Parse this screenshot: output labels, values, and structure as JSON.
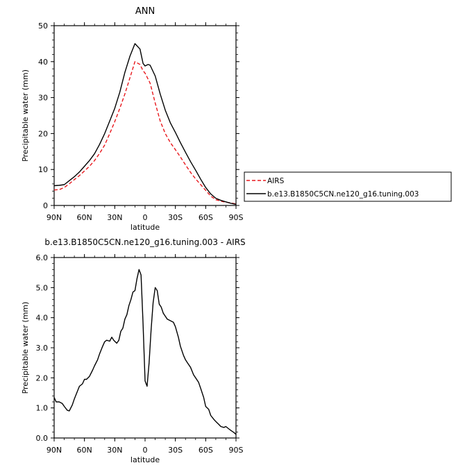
{
  "figure": {
    "title": "ANN",
    "subtitle": "b.e13.B1850C5CN.ne120_g16.tuning.003 - AIRS"
  },
  "chart_data": [
    {
      "type": "line",
      "title": "ANN",
      "xlabel": "latitude",
      "ylabel": "Precipitable water (mm)",
      "x_ticks": [
        "90N",
        "60N",
        "30N",
        "0",
        "30S",
        "60S",
        "90S"
      ],
      "x_tick_values": [
        90,
        60,
        30,
        0,
        -30,
        -60,
        -90
      ],
      "xlim": [
        90,
        -90
      ],
      "ylim": [
        0,
        50
      ],
      "y_ticks": [
        0,
        10,
        20,
        30,
        40,
        50
      ],
      "y_tick_labels": [
        "0",
        "10",
        "20",
        "30",
        "40",
        "50"
      ],
      "legend_position": "right",
      "series": [
        {
          "name": "AIRS",
          "color": "#e8171c",
          "dash": "dashed",
          "x": [
            90,
            85,
            80,
            75,
            70,
            65,
            60,
            55,
            50,
            45,
            40,
            35,
            30,
            25,
            20,
            15,
            10,
            5,
            2,
            0,
            -5,
            -10,
            -15,
            -20,
            -25,
            -30,
            -35,
            -40,
            -45,
            -50,
            -55,
            -60,
            -65,
            -70,
            -75,
            -80,
            -85,
            -90
          ],
          "y": [
            4.3,
            4.4,
            5.0,
            6.0,
            7.2,
            8.3,
            9.6,
            10.9,
            12.5,
            14.5,
            16.8,
            20.0,
            23.3,
            27.0,
            31.0,
            35.5,
            40.0,
            39.2,
            37.5,
            36.8,
            34.0,
            28.5,
            23.5,
            20.0,
            17.5,
            15.5,
            13.5,
            11.3,
            9.2,
            7.4,
            5.8,
            4.2,
            2.6,
            1.6,
            1.2,
            0.9,
            0.7,
            0.4
          ]
        },
        {
          "name": "b.e13.B1850C5CN.ne120_g16.tuning.003",
          "color": "#000000",
          "dash": "solid",
          "x": [
            90,
            85,
            80,
            75,
            70,
            65,
            60,
            55,
            50,
            45,
            40,
            35,
            30,
            25,
            20,
            15,
            10,
            5,
            2,
            0,
            -3,
            -5,
            -10,
            -15,
            -20,
            -25,
            -30,
            -35,
            -40,
            -45,
            -50,
            -55,
            -60,
            -65,
            -70,
            -75,
            -80,
            -85,
            -90
          ],
          "y": [
            5.5,
            5.6,
            5.8,
            6.9,
            8.0,
            9.3,
            10.9,
            12.5,
            14.4,
            17.0,
            20.0,
            23.5,
            27.0,
            31.5,
            37.0,
            41.5,
            45.0,
            43.5,
            39.5,
            38.8,
            39.2,
            39.0,
            36.0,
            31.0,
            26.5,
            23.0,
            20.3,
            17.5,
            14.8,
            12.2,
            9.8,
            7.3,
            5.0,
            3.2,
            2.0,
            1.4,
            1.0,
            0.6,
            0.3
          ]
        }
      ]
    },
    {
      "type": "line",
      "title": "b.e13.B1850C5CN.ne120_g16.tuning.003 - AIRS",
      "xlabel": "latitude",
      "ylabel": "Precipitable water (mm)",
      "x_ticks": [
        "90N",
        "60N",
        "30N",
        "0",
        "30S",
        "60S",
        "90S"
      ],
      "x_tick_values": [
        90,
        60,
        30,
        0,
        -30,
        -60,
        -90
      ],
      "xlim": [
        90,
        -90
      ],
      "ylim": [
        0,
        6
      ],
      "y_ticks": [
        0,
        1,
        2,
        3,
        4,
        5,
        6
      ],
      "y_tick_labels": [
        "0.0",
        "1.0",
        "2.0",
        "3.0",
        "4.0",
        "5.0",
        "6.0"
      ],
      "series": [
        {
          "color": "#000000",
          "dash": "solid",
          "x": [
            90,
            88,
            85,
            82,
            80,
            77,
            75,
            72,
            70,
            67,
            65,
            62,
            60,
            58,
            55,
            52,
            50,
            47,
            45,
            42,
            40,
            38,
            35,
            33,
            31,
            28,
            26,
            24,
            22,
            20,
            18,
            16,
            14,
            12,
            10,
            8,
            6,
            4,
            2,
            0,
            -2,
            -4,
            -6,
            -8,
            -10,
            -12,
            -14,
            -16,
            -18,
            -20,
            -22,
            -25,
            -28,
            -30,
            -33,
            -35,
            -38,
            -40,
            -42,
            -45,
            -48,
            -50,
            -53,
            -55,
            -58,
            -60,
            -63,
            -65,
            -68,
            -70,
            -73,
            -75,
            -78,
            -80,
            -83,
            -85,
            -88,
            -90
          ],
          "y": [
            1.35,
            1.2,
            1.2,
            1.15,
            1.05,
            0.92,
            0.9,
            1.1,
            1.3,
            1.55,
            1.72,
            1.8,
            1.95,
            1.95,
            2.05,
            2.25,
            2.4,
            2.6,
            2.8,
            3.05,
            3.2,
            3.25,
            3.22,
            3.35,
            3.25,
            3.15,
            3.25,
            3.55,
            3.65,
            3.95,
            4.1,
            4.4,
            4.6,
            4.85,
            4.9,
            5.3,
            5.6,
            5.42,
            3.8,
            1.9,
            1.72,
            2.5,
            3.6,
            4.5,
            5.0,
            4.9,
            4.45,
            4.35,
            4.15,
            4.05,
            3.95,
            3.9,
            3.85,
            3.7,
            3.35,
            3.05,
            2.75,
            2.6,
            2.5,
            2.35,
            2.1,
            2.0,
            1.85,
            1.65,
            1.35,
            1.05,
            0.95,
            0.75,
            0.62,
            0.55,
            0.45,
            0.38,
            0.35,
            0.38,
            0.3,
            0.25,
            0.18,
            0.12
          ]
        }
      ]
    }
  ]
}
